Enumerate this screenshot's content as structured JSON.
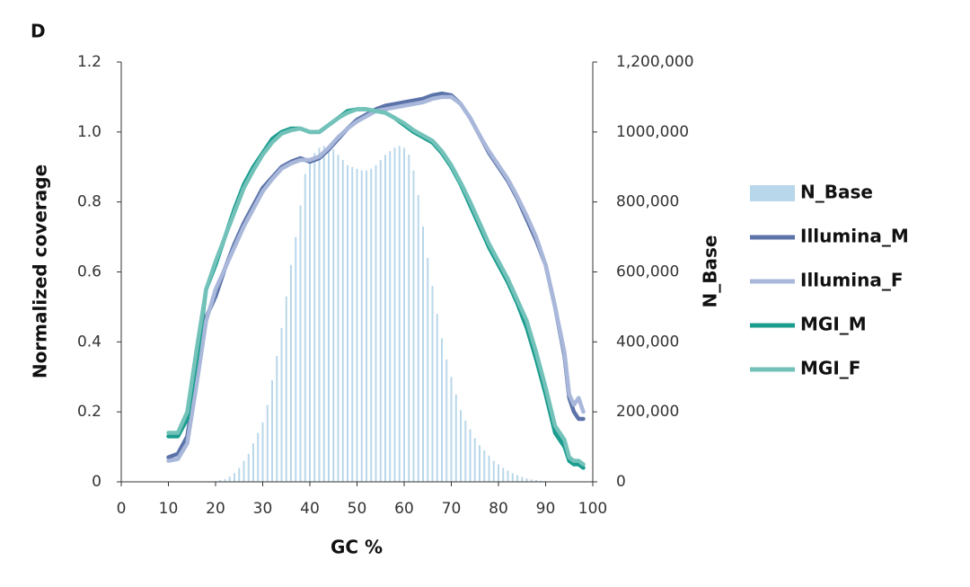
{
  "panel_label": "D",
  "chart_data": {
    "type": "combo",
    "xlabel": "GC %",
    "ylabel": "Normalized coverage",
    "y2label": "N_Base",
    "xlim": [
      0,
      100
    ],
    "xticks": [
      0,
      10,
      20,
      30,
      40,
      50,
      60,
      70,
      80,
      90,
      100
    ],
    "ylim": [
      0,
      1.2
    ],
    "yticks": [
      0,
      0.2,
      0.4,
      0.6,
      0.8,
      {
        "value": 1,
        "label": "1.0"
      },
      1.2
    ],
    "y2lim": [
      0,
      1200000
    ],
    "y2ticks": [
      0,
      {
        "value": 200000,
        "label": "200,000"
      },
      {
        "value": 400000,
        "label": "400,000"
      },
      {
        "value": 600000,
        "label": "600,000"
      },
      {
        "value": 800000,
        "label": "800,000"
      },
      {
        "value": 1000000,
        "label": "1000,000"
      },
      {
        "value": 1200000,
        "label": "1,200,000"
      }
    ],
    "series": [
      {
        "name": "N_Base",
        "type": "bar",
        "axis": "y2",
        "color": "#b9d7ea",
        "x": [
          20,
          21,
          22,
          23,
          24,
          25,
          26,
          27,
          28,
          29,
          30,
          31,
          32,
          33,
          34,
          35,
          36,
          37,
          38,
          39,
          40,
          41,
          42,
          43,
          44,
          45,
          46,
          47,
          48,
          49,
          50,
          51,
          52,
          53,
          54,
          55,
          56,
          57,
          58,
          59,
          60,
          61,
          62,
          63,
          64,
          65,
          66,
          67,
          68,
          69,
          70,
          71,
          72,
          73,
          74,
          75,
          76,
          77,
          78,
          79,
          80,
          81,
          82,
          83,
          84,
          85,
          86,
          87,
          88,
          89,
          90
        ],
        "values": [
          2000,
          5000,
          8000,
          15000,
          25000,
          40000,
          60000,
          80000,
          110000,
          140000,
          170000,
          220000,
          290000,
          360000,
          440000,
          530000,
          620000,
          700000,
          790000,
          880000,
          910000,
          940000,
          955000,
          960000,
          960000,
          950000,
          935000,
          920000,
          905000,
          900000,
          895000,
          890000,
          890000,
          895000,
          905000,
          920000,
          935000,
          945000,
          955000,
          960000,
          955000,
          935000,
          890000,
          820000,
          730000,
          640000,
          560000,
          480000,
          410000,
          350000,
          300000,
          250000,
          205000,
          175000,
          150000,
          125000,
          105000,
          90000,
          75000,
          60000,
          50000,
          40000,
          32000,
          25000,
          19000,
          14000,
          10000,
          7000,
          5000,
          3000,
          2000
        ]
      },
      {
        "name": "Illumina_M",
        "type": "line",
        "color": "#5b73a9",
        "x": [
          10,
          12,
          14,
          16,
          18,
          20,
          22,
          24,
          26,
          28,
          30,
          32,
          34,
          36,
          38,
          40,
          42,
          44,
          46,
          48,
          50,
          52,
          54,
          56,
          58,
          60,
          62,
          64,
          66,
          68,
          70,
          72,
          74,
          76,
          78,
          80,
          82,
          84,
          86,
          88,
          90,
          92,
          94,
          95,
          96,
          97,
          98
        ],
        "values": [
          0.07,
          0.08,
          0.13,
          0.3,
          0.47,
          0.53,
          0.61,
          0.68,
          0.74,
          0.79,
          0.84,
          0.87,
          0.9,
          0.915,
          0.925,
          0.915,
          0.925,
          0.95,
          0.98,
          1.01,
          1.035,
          1.05,
          1.065,
          1.075,
          1.08,
          1.085,
          1.09,
          1.095,
          1.105,
          1.11,
          1.105,
          1.08,
          1.04,
          0.99,
          0.94,
          0.9,
          0.86,
          0.81,
          0.75,
          0.69,
          0.62,
          0.5,
          0.36,
          0.24,
          0.2,
          0.18,
          0.18
        ]
      },
      {
        "name": "Illumina_F",
        "type": "line",
        "color": "#a9b8da",
        "x": [
          10,
          12,
          14,
          16,
          18,
          20,
          22,
          24,
          26,
          28,
          30,
          32,
          34,
          36,
          38,
          40,
          42,
          44,
          46,
          48,
          50,
          52,
          54,
          56,
          58,
          60,
          62,
          64,
          66,
          68,
          70,
          72,
          74,
          76,
          78,
          80,
          82,
          84,
          86,
          88,
          90,
          92,
          94,
          95,
          96,
          97,
          98
        ],
        "values": [
          0.06,
          0.065,
          0.11,
          0.28,
          0.46,
          0.55,
          0.61,
          0.67,
          0.73,
          0.78,
          0.83,
          0.865,
          0.895,
          0.91,
          0.92,
          0.92,
          0.93,
          0.955,
          0.985,
          1.01,
          1.03,
          1.045,
          1.06,
          1.065,
          1.07,
          1.075,
          1.08,
          1.085,
          1.095,
          1.1,
          1.1,
          1.08,
          1.04,
          0.99,
          0.945,
          0.905,
          0.865,
          0.815,
          0.76,
          0.7,
          0.62,
          0.5,
          0.37,
          0.25,
          0.22,
          0.24,
          0.2
        ]
      },
      {
        "name": "MGI_M",
        "type": "line",
        "color": "#1a9c8e",
        "x": [
          10,
          12,
          14,
          16,
          18,
          20,
          22,
          24,
          26,
          28,
          30,
          32,
          34,
          36,
          38,
          40,
          42,
          44,
          46,
          48,
          50,
          52,
          54,
          56,
          58,
          60,
          62,
          64,
          66,
          68,
          70,
          72,
          74,
          76,
          78,
          80,
          82,
          84,
          86,
          88,
          90,
          92,
          94,
          95,
          96,
          97,
          98
        ],
        "values": [
          0.13,
          0.13,
          0.18,
          0.35,
          0.55,
          0.62,
          0.7,
          0.78,
          0.85,
          0.9,
          0.94,
          0.98,
          1,
          1.01,
          1.01,
          1,
          1,
          1.02,
          1.04,
          1.06,
          1.065,
          1.065,
          1.06,
          1.055,
          1.04,
          1.02,
          1,
          0.985,
          0.97,
          0.94,
          0.9,
          0.85,
          0.79,
          0.73,
          0.67,
          0.62,
          0.57,
          0.51,
          0.44,
          0.35,
          0.25,
          0.14,
          0.1,
          0.06,
          0.05,
          0.05,
          0.04
        ]
      },
      {
        "name": "MGI_F",
        "type": "line",
        "color": "#72c2ba",
        "x": [
          10,
          12,
          14,
          16,
          18,
          20,
          22,
          24,
          26,
          28,
          30,
          32,
          34,
          36,
          38,
          40,
          42,
          44,
          46,
          48,
          50,
          52,
          54,
          56,
          58,
          60,
          62,
          64,
          66,
          68,
          70,
          72,
          74,
          76,
          78,
          80,
          82,
          84,
          86,
          88,
          90,
          92,
          94,
          95,
          96,
          97,
          98
        ],
        "values": [
          0.14,
          0.14,
          0.2,
          0.38,
          0.55,
          0.63,
          0.7,
          0.77,
          0.84,
          0.89,
          0.935,
          0.97,
          0.995,
          1.005,
          1.01,
          1,
          1,
          1.02,
          1.04,
          1.055,
          1.065,
          1.065,
          1.06,
          1.055,
          1.04,
          1.025,
          1.005,
          0.99,
          0.975,
          0.945,
          0.905,
          0.855,
          0.8,
          0.74,
          0.68,
          0.63,
          0.58,
          0.52,
          0.46,
          0.37,
          0.27,
          0.16,
          0.12,
          0.07,
          0.06,
          0.06,
          0.05
        ]
      }
    ]
  }
}
